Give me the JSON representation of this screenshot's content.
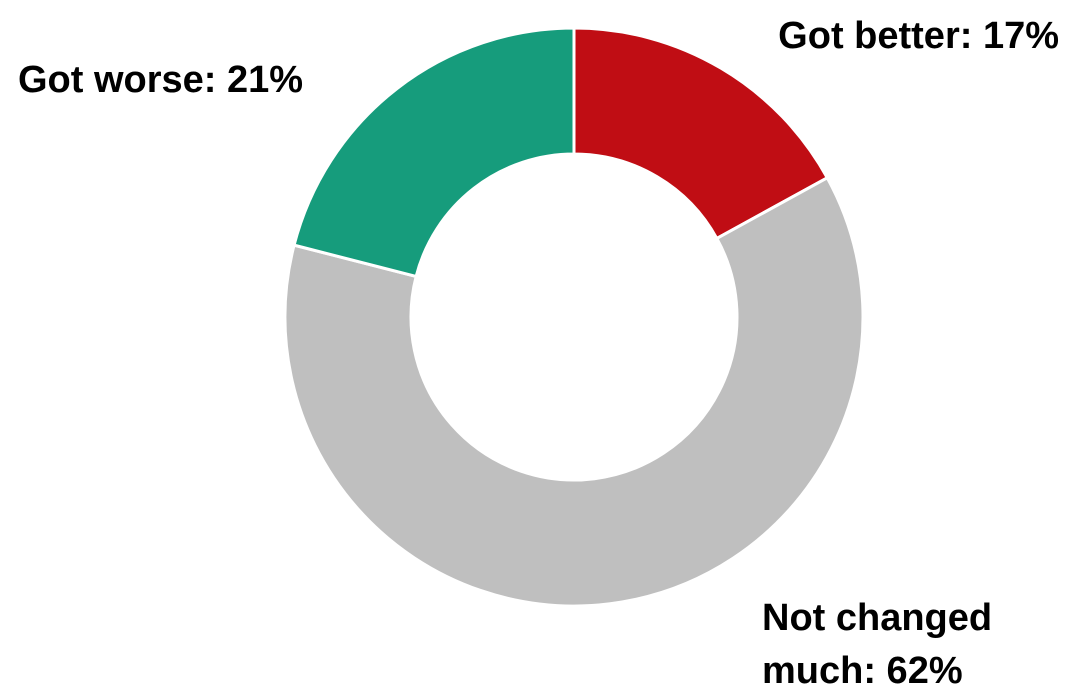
{
  "chart_data": {
    "type": "pie",
    "variant": "donut",
    "slices": [
      {
        "category": "Got better",
        "label": "Got better: 17%",
        "value": 17,
        "color": "#C00D14"
      },
      {
        "category": "Not changed much",
        "label_lines": [
          "Not changed",
          "much: 62%"
        ],
        "value": 62,
        "color": "#BFBFBF"
      },
      {
        "category": "Got worse",
        "label": "Got worse: 21%",
        "value": 21,
        "color": "#169C7C"
      }
    ]
  }
}
